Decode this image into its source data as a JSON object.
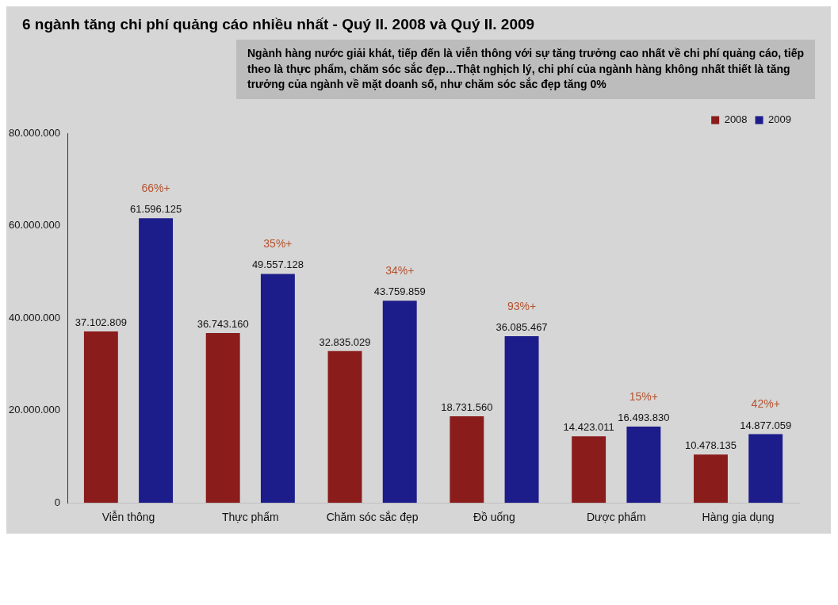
{
  "chart_data": {
    "type": "bar",
    "title": "6 ngành tăng chi phí quảng cáo nhiều nhất - Quý II. 2008 và Quý II. 2009",
    "categories": [
      "Viễn thông",
      "Thực phẩm",
      "Chăm sóc sắc đẹp",
      "Đồ uống",
      "Dược phẩm",
      "Hàng gia dụng"
    ],
    "series": [
      {
        "name": "2008",
        "color": "#8b1c1c",
        "values": [
          37102809,
          36743160,
          32835029,
          18731560,
          14423011,
          10478135
        ],
        "value_labels": [
          "37.102.809",
          "36.743.160",
          "32.835.029",
          "18.731.560",
          "14.423.011",
          "10.478.135"
        ]
      },
      {
        "name": "2009",
        "color": "#1c1c8a",
        "values": [
          61596125,
          49557128,
          43759859,
          36085467,
          16493830,
          14877059
        ],
        "value_labels": [
          "61.596.125",
          "49.557.128",
          "43.759.859",
          "36.085.467",
          "16.493.830",
          "14.877.059"
        ]
      }
    ],
    "ylim": [
      0,
      80000000
    ],
    "yticks": [
      {
        "value": 0,
        "label": "0"
      },
      {
        "value": 20000000,
        "label": "20.000.000"
      },
      {
        "value": 40000000,
        "label": "40.000.000"
      },
      {
        "value": 60000000,
        "label": "60.000.000"
      },
      {
        "value": 80000000,
        "label": "80.000.000"
      }
    ],
    "legend": "top right",
    "annotations": [
      "Ngành hàng nước giải khát, tiếp đến là viễn thông với sự tăng trưởng cao nhất về chi phí quảng cáo, tiếp theo là thực phẩm, chăm sóc sắc đẹp…Thật nghịch lý, chi phí của ngành hàng không nhất thiết là tăng trưởng của ngành về mặt doanh số, như chăm sóc sắc đẹp tăng 0%",
      "66%+",
      "35%+",
      "34%+",
      "93%+",
      "15%+",
      "42%+"
    ]
  }
}
